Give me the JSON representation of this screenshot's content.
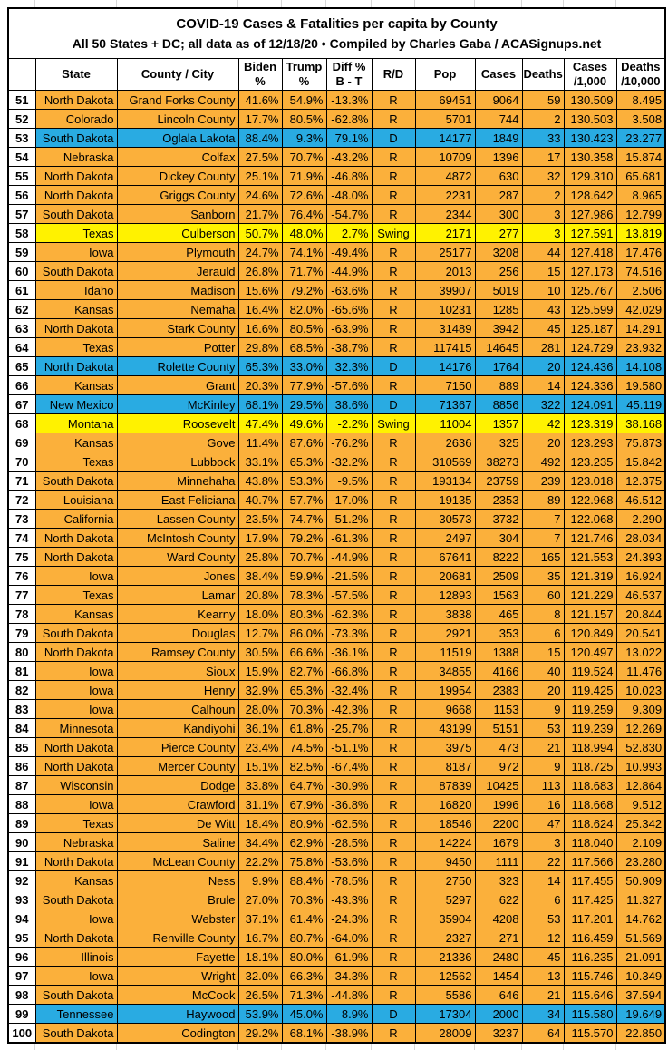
{
  "title": "COVID-19 Cases & Fatalities per capita by County",
  "subtitle": "All 50 States + DC; all data as of 12/18/20  • Compiled by Charles Gaba / ACASignups.net",
  "colors": {
    "republican_row": "#FBB03B",
    "democrat_row": "#29ABE2",
    "swing_row": "#FFF200",
    "grid_border": "#000000",
    "header_bg": "#FFFFFF"
  },
  "chart_data": {
    "type": "table",
    "title": "COVID-19 Cases & Fatalities per capita by County",
    "subtitle": "All 50 States + DC; all data as of 12/18/20 • Compiled by Charles Gaba / ACASignups.net",
    "columns": [
      "",
      "State",
      "County / City",
      "Biden\n%",
      "Trump\n%",
      "Diff %\nB - T",
      "R/D",
      "Pop",
      "Cases",
      "Deaths",
      "Cases\n/1,000",
      "Deaths\n/10,000"
    ],
    "column_keys": [
      "rank",
      "state",
      "county",
      "biden-pct",
      "trump-pct",
      "diff-pct",
      "party",
      "pop",
      "cases",
      "deaths",
      "cases-per-1000",
      "deaths-per-10000"
    ],
    "row_color_rule": {
      "R": "republican_row",
      "D": "democrat_row",
      "Swing": "swing_row"
    },
    "rows": [
      [
        "51",
        "North Dakota",
        "Grand Forks County",
        "41.6%",
        "54.9%",
        "-13.3%",
        "R",
        "69451",
        "9064",
        "59",
        "130.509",
        "8.495"
      ],
      [
        "52",
        "Colorado",
        "Lincoln County",
        "17.7%",
        "80.5%",
        "-62.8%",
        "R",
        "5701",
        "744",
        "2",
        "130.503",
        "3.508"
      ],
      [
        "53",
        "South Dakota",
        "Oglala Lakota",
        "88.4%",
        "9.3%",
        "79.1%",
        "D",
        "14177",
        "1849",
        "33",
        "130.423",
        "23.277"
      ],
      [
        "54",
        "Nebraska",
        "Colfax",
        "27.5%",
        "70.7%",
        "-43.2%",
        "R",
        "10709",
        "1396",
        "17",
        "130.358",
        "15.874"
      ],
      [
        "55",
        "North Dakota",
        "Dickey County",
        "25.1%",
        "71.9%",
        "-46.8%",
        "R",
        "4872",
        "630",
        "32",
        "129.310",
        "65.681"
      ],
      [
        "56",
        "North Dakota",
        "Griggs County",
        "24.6%",
        "72.6%",
        "-48.0%",
        "R",
        "2231",
        "287",
        "2",
        "128.642",
        "8.965"
      ],
      [
        "57",
        "South Dakota",
        "Sanborn",
        "21.7%",
        "76.4%",
        "-54.7%",
        "R",
        "2344",
        "300",
        "3",
        "127.986",
        "12.799"
      ],
      [
        "58",
        "Texas",
        "Culberson",
        "50.7%",
        "48.0%",
        "2.7%",
        "Swing",
        "2171",
        "277",
        "3",
        "127.591",
        "13.819"
      ],
      [
        "59",
        "Iowa",
        "Plymouth",
        "24.7%",
        "74.1%",
        "-49.4%",
        "R",
        "25177",
        "3208",
        "44",
        "127.418",
        "17.476"
      ],
      [
        "60",
        "South Dakota",
        "Jerauld",
        "26.8%",
        "71.7%",
        "-44.9%",
        "R",
        "2013",
        "256",
        "15",
        "127.173",
        "74.516"
      ],
      [
        "61",
        "Idaho",
        "Madison",
        "15.6%",
        "79.2%",
        "-63.6%",
        "R",
        "39907",
        "5019",
        "10",
        "125.767",
        "2.506"
      ],
      [
        "62",
        "Kansas",
        "Nemaha",
        "16.4%",
        "82.0%",
        "-65.6%",
        "R",
        "10231",
        "1285",
        "43",
        "125.599",
        "42.029"
      ],
      [
        "63",
        "North Dakota",
        "Stark County",
        "16.6%",
        "80.5%",
        "-63.9%",
        "R",
        "31489",
        "3942",
        "45",
        "125.187",
        "14.291"
      ],
      [
        "64",
        "Texas",
        "Potter",
        "29.8%",
        "68.5%",
        "-38.7%",
        "R",
        "117415",
        "14645",
        "281",
        "124.729",
        "23.932"
      ],
      [
        "65",
        "North Dakota",
        "Rolette County",
        "65.3%",
        "33.0%",
        "32.3%",
        "D",
        "14176",
        "1764",
        "20",
        "124.436",
        "14.108"
      ],
      [
        "66",
        "Kansas",
        "Grant",
        "20.3%",
        "77.9%",
        "-57.6%",
        "R",
        "7150",
        "889",
        "14",
        "124.336",
        "19.580"
      ],
      [
        "67",
        "New Mexico",
        "McKinley",
        "68.1%",
        "29.5%",
        "38.6%",
        "D",
        "71367",
        "8856",
        "322",
        "124.091",
        "45.119"
      ],
      [
        "68",
        "Montana",
        "Roosevelt",
        "47.4%",
        "49.6%",
        "-2.2%",
        "Swing",
        "11004",
        "1357",
        "42",
        "123.319",
        "38.168"
      ],
      [
        "69",
        "Kansas",
        "Gove",
        "11.4%",
        "87.6%",
        "-76.2%",
        "R",
        "2636",
        "325",
        "20",
        "123.293",
        "75.873"
      ],
      [
        "70",
        "Texas",
        "Lubbock",
        "33.1%",
        "65.3%",
        "-32.2%",
        "R",
        "310569",
        "38273",
        "492",
        "123.235",
        "15.842"
      ],
      [
        "71",
        "South Dakota",
        "Minnehaha",
        "43.8%",
        "53.3%",
        "-9.5%",
        "R",
        "193134",
        "23759",
        "239",
        "123.018",
        "12.375"
      ],
      [
        "72",
        "Louisiana",
        "East Feliciana",
        "40.7%",
        "57.7%",
        "-17.0%",
        "R",
        "19135",
        "2353",
        "89",
        "122.968",
        "46.512"
      ],
      [
        "73",
        "California",
        "Lassen County",
        "23.5%",
        "74.7%",
        "-51.2%",
        "R",
        "30573",
        "3732",
        "7",
        "122.068",
        "2.290"
      ],
      [
        "74",
        "North Dakota",
        "McIntosh County",
        "17.9%",
        "79.2%",
        "-61.3%",
        "R",
        "2497",
        "304",
        "7",
        "121.746",
        "28.034"
      ],
      [
        "75",
        "North Dakota",
        "Ward County",
        "25.8%",
        "70.7%",
        "-44.9%",
        "R",
        "67641",
        "8222",
        "165",
        "121.553",
        "24.393"
      ],
      [
        "76",
        "Iowa",
        "Jones",
        "38.4%",
        "59.9%",
        "-21.5%",
        "R",
        "20681",
        "2509",
        "35",
        "121.319",
        "16.924"
      ],
      [
        "77",
        "Texas",
        "Lamar",
        "20.8%",
        "78.3%",
        "-57.5%",
        "R",
        "12893",
        "1563",
        "60",
        "121.229",
        "46.537"
      ],
      [
        "78",
        "Kansas",
        "Kearny",
        "18.0%",
        "80.3%",
        "-62.3%",
        "R",
        "3838",
        "465",
        "8",
        "121.157",
        "20.844"
      ],
      [
        "79",
        "South Dakota",
        "Douglas",
        "12.7%",
        "86.0%",
        "-73.3%",
        "R",
        "2921",
        "353",
        "6",
        "120.849",
        "20.541"
      ],
      [
        "80",
        "North Dakota",
        "Ramsey County",
        "30.5%",
        "66.6%",
        "-36.1%",
        "R",
        "11519",
        "1388",
        "15",
        "120.497",
        "13.022"
      ],
      [
        "81",
        "Iowa",
        "Sioux",
        "15.9%",
        "82.7%",
        "-66.8%",
        "R",
        "34855",
        "4166",
        "40",
        "119.524",
        "11.476"
      ],
      [
        "82",
        "Iowa",
        "Henry",
        "32.9%",
        "65.3%",
        "-32.4%",
        "R",
        "19954",
        "2383",
        "20",
        "119.425",
        "10.023"
      ],
      [
        "83",
        "Iowa",
        "Calhoun",
        "28.0%",
        "70.3%",
        "-42.3%",
        "R",
        "9668",
        "1153",
        "9",
        "119.259",
        "9.309"
      ],
      [
        "84",
        "Minnesota",
        "Kandiyohi",
        "36.1%",
        "61.8%",
        "-25.7%",
        "R",
        "43199",
        "5151",
        "53",
        "119.239",
        "12.269"
      ],
      [
        "85",
        "North Dakota",
        "Pierce County",
        "23.4%",
        "74.5%",
        "-51.1%",
        "R",
        "3975",
        "473",
        "21",
        "118.994",
        "52.830"
      ],
      [
        "86",
        "North Dakota",
        "Mercer County",
        "15.1%",
        "82.5%",
        "-67.4%",
        "R",
        "8187",
        "972",
        "9",
        "118.725",
        "10.993"
      ],
      [
        "87",
        "Wisconsin",
        "Dodge",
        "33.8%",
        "64.7%",
        "-30.9%",
        "R",
        "87839",
        "10425",
        "113",
        "118.683",
        "12.864"
      ],
      [
        "88",
        "Iowa",
        "Crawford",
        "31.1%",
        "67.9%",
        "-36.8%",
        "R",
        "16820",
        "1996",
        "16",
        "118.668",
        "9.512"
      ],
      [
        "89",
        "Texas",
        "De Witt",
        "18.4%",
        "80.9%",
        "-62.5%",
        "R",
        "18546",
        "2200",
        "47",
        "118.624",
        "25.342"
      ],
      [
        "90",
        "Nebraska",
        "Saline",
        "34.4%",
        "62.9%",
        "-28.5%",
        "R",
        "14224",
        "1679",
        "3",
        "118.040",
        "2.109"
      ],
      [
        "91",
        "North Dakota",
        "McLean County",
        "22.2%",
        "75.8%",
        "-53.6%",
        "R",
        "9450",
        "1111",
        "22",
        "117.566",
        "23.280"
      ],
      [
        "92",
        "Kansas",
        "Ness",
        "9.9%",
        "88.4%",
        "-78.5%",
        "R",
        "2750",
        "323",
        "14",
        "117.455",
        "50.909"
      ],
      [
        "93",
        "South Dakota",
        "Brule",
        "27.0%",
        "70.3%",
        "-43.3%",
        "R",
        "5297",
        "622",
        "6",
        "117.425",
        "11.327"
      ],
      [
        "94",
        "Iowa",
        "Webster",
        "37.1%",
        "61.4%",
        "-24.3%",
        "R",
        "35904",
        "4208",
        "53",
        "117.201",
        "14.762"
      ],
      [
        "95",
        "North Dakota",
        "Renville County",
        "16.7%",
        "80.7%",
        "-64.0%",
        "R",
        "2327",
        "271",
        "12",
        "116.459",
        "51.569"
      ],
      [
        "96",
        "Illinois",
        "Fayette",
        "18.1%",
        "80.0%",
        "-61.9%",
        "R",
        "21336",
        "2480",
        "45",
        "116.235",
        "21.091"
      ],
      [
        "97",
        "Iowa",
        "Wright",
        "32.0%",
        "66.3%",
        "-34.3%",
        "R",
        "12562",
        "1454",
        "13",
        "115.746",
        "10.349"
      ],
      [
        "98",
        "South Dakota",
        "McCook",
        "26.5%",
        "71.3%",
        "-44.8%",
        "R",
        "5586",
        "646",
        "21",
        "115.646",
        "37.594"
      ],
      [
        "99",
        "Tennessee",
        "Haywood",
        "53.9%",
        "45.0%",
        "8.9%",
        "D",
        "17304",
        "2000",
        "34",
        "115.580",
        "19.649"
      ],
      [
        "100",
        "South Dakota",
        "Codington",
        "29.2%",
        "68.1%",
        "-38.9%",
        "R",
        "28009",
        "3237",
        "64",
        "115.570",
        "22.850"
      ]
    ]
  }
}
